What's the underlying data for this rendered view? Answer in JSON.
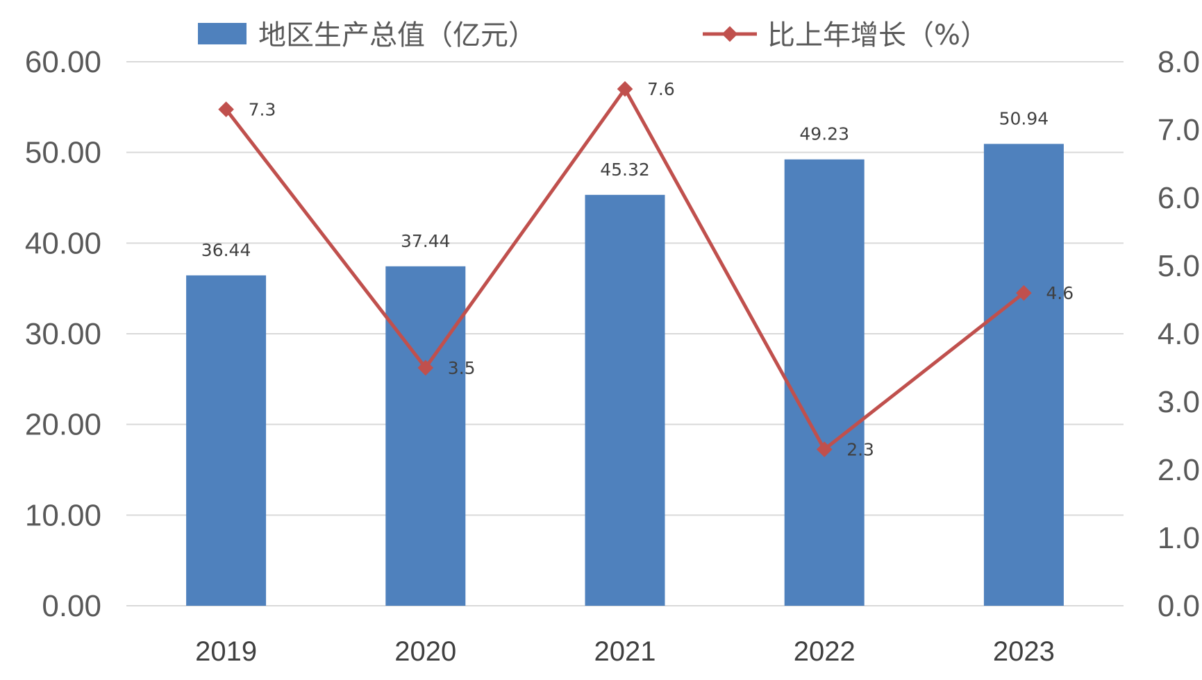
{
  "chart_data": {
    "type": "bar",
    "categories": [
      "2019",
      "2020",
      "2021",
      "2022",
      "2023"
    ],
    "series": [
      {
        "name": "地区生产总值（亿元）",
        "type": "bar",
        "axis": "left",
        "color": "#4f81bd",
        "values": [
          36.44,
          37.44,
          45.32,
          49.23,
          50.94
        ],
        "labels": [
          "36.44",
          "37.44",
          "45.32",
          "49.23",
          "50.94"
        ]
      },
      {
        "name": "比上年增长（%）",
        "type": "line",
        "axis": "right",
        "color": "#c0504d",
        "values": [
          7.3,
          3.5,
          7.6,
          2.3,
          4.6
        ],
        "labels": [
          "7.3",
          "3.5",
          "7.6",
          "2.3",
          "4.6"
        ]
      }
    ],
    "y_left": {
      "range": [
        0,
        60
      ],
      "ticks": [
        "0.00",
        "10.00",
        "20.00",
        "30.00",
        "40.00",
        "50.00",
        "60.00"
      ]
    },
    "y_right": {
      "range": [
        0,
        8
      ],
      "ticks": [
        "0.0",
        "1.0",
        "2.0",
        "3.0",
        "4.0",
        "5.0",
        "6.0",
        "7.0",
        "8.0"
      ]
    },
    "grid": true,
    "legend": "top"
  }
}
